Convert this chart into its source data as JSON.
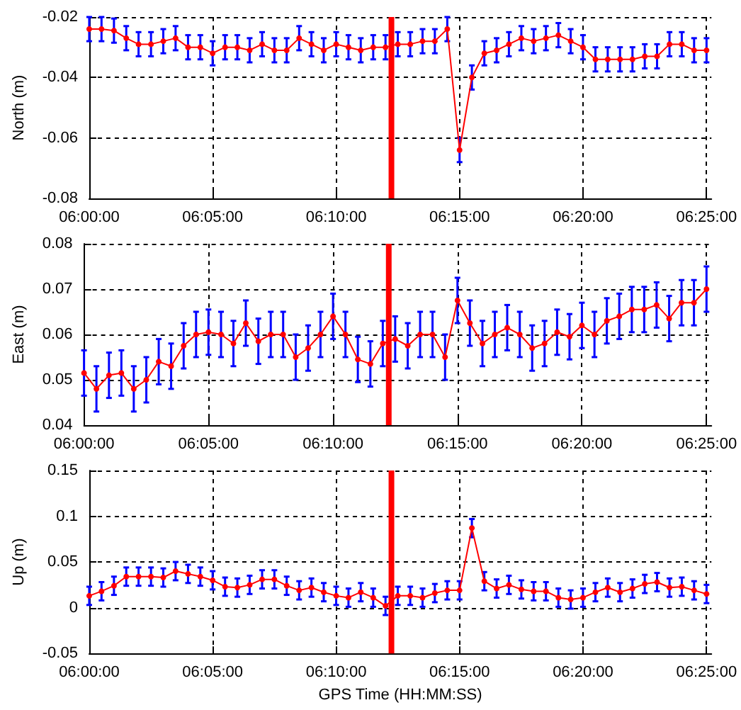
{
  "chart_data": [
    {
      "type": "line",
      "ylabel": "North (m)",
      "marker": "circle",
      "grid": true,
      "xlim": [
        6,
        6.42
      ],
      "ylim": [
        -0.08,
        -0.02
      ],
      "yticks": [
        -0.08,
        -0.06,
        -0.04,
        -0.02
      ],
      "xticks": [
        {
          "value": 6,
          "label": "06:00:00"
        },
        {
          "value": 6.0833,
          "label": "06:05:00"
        },
        {
          "value": 6.1667,
          "label": "06:10:00"
        },
        {
          "value": 6.25,
          "label": "06:15:00"
        },
        {
          "value": 6.3333,
          "label": "06:20:00"
        },
        {
          "value": 6.4167,
          "label": "06:25:00"
        }
      ],
      "ref_lines": [
        {
          "axis": "x",
          "value": 6.204,
          "color": "#ff0000"
        }
      ],
      "x": [
        6,
        6.0083,
        6.0167,
        6.025,
        6.0333,
        6.0417,
        6.05,
        6.0583,
        6.0667,
        6.075,
        6.0833,
        6.0917,
        6.1,
        6.1083,
        6.1167,
        6.125,
        6.1333,
        6.1417,
        6.15,
        6.1583,
        6.1667,
        6.175,
        6.1833,
        6.1917,
        6.2,
        6.2083,
        6.2167,
        6.225,
        6.2333,
        6.2417,
        6.25,
        6.2583,
        6.2667,
        6.275,
        6.2833,
        6.2917,
        6.3,
        6.3083,
        6.3167,
        6.325,
        6.3333,
        6.3417,
        6.35,
        6.3583,
        6.3667,
        6.375,
        6.3833,
        6.3917,
        6.4,
        6.4083,
        6.4167
      ],
      "series": [
        {
          "color": "#ff0000",
          "values": [
            -0.024,
            -0.024,
            -0.0245,
            -0.027,
            -0.029,
            -0.029,
            -0.028,
            -0.027,
            -0.03,
            -0.03,
            -0.032,
            -0.03,
            -0.03,
            -0.031,
            -0.029,
            -0.031,
            -0.031,
            -0.027,
            -0.029,
            -0.031,
            -0.029,
            -0.03,
            -0.031,
            -0.03,
            -0.03,
            -0.029,
            -0.029,
            -0.028,
            -0.028,
            -0.024,
            -0.064,
            -0.04,
            -0.032,
            -0.031,
            -0.029,
            -0.027,
            -0.028,
            -0.027,
            -0.026,
            -0.028,
            -0.03,
            -0.034,
            -0.034,
            -0.034,
            -0.034,
            -0.033,
            -0.033,
            -0.029,
            -0.029,
            -0.031,
            -0.031
          ],
          "errors": [
            0.004,
            0.004,
            0.004,
            0.004,
            0.004,
            0.004,
            0.004,
            0.004,
            0.004,
            0.004,
            0.004,
            0.004,
            0.004,
            0.004,
            0.004,
            0.004,
            0.004,
            0.004,
            0.004,
            0.004,
            0.004,
            0.004,
            0.004,
            0.004,
            0.004,
            0.004,
            0.004,
            0.004,
            0.004,
            0.004,
            0.004,
            0.004,
            0.004,
            0.004,
            0.004,
            0.004,
            0.004,
            0.004,
            0.004,
            0.004,
            0.004,
            0.004,
            0.004,
            0.004,
            0.004,
            0.004,
            0.004,
            0.004,
            0.004,
            0.004,
            0.004
          ]
        }
      ]
    },
    {
      "type": "line",
      "ylabel": "East (m)",
      "marker": "circle",
      "grid": true,
      "xlim": [
        6,
        6.42
      ],
      "ylim": [
        0.04,
        0.08
      ],
      "yticks": [
        0.04,
        0.05,
        0.06,
        0.07,
        0.08
      ],
      "xticks": [
        {
          "value": 6,
          "label": "06:00:00"
        },
        {
          "value": 6.0833,
          "label": "06:05:00"
        },
        {
          "value": 6.1667,
          "label": "06:10:00"
        },
        {
          "value": 6.25,
          "label": "06:15:00"
        },
        {
          "value": 6.3333,
          "label": "06:20:00"
        },
        {
          "value": 6.4167,
          "label": "06:25:00"
        }
      ],
      "ref_lines": [
        {
          "axis": "x",
          "value": 6.204,
          "color": "#ff0000"
        }
      ],
      "x": [
        6,
        6.0083,
        6.0167,
        6.025,
        6.0333,
        6.0417,
        6.05,
        6.0583,
        6.0667,
        6.075,
        6.0833,
        6.0917,
        6.1,
        6.1083,
        6.1167,
        6.125,
        6.1333,
        6.1417,
        6.15,
        6.1583,
        6.1667,
        6.175,
        6.1833,
        6.1917,
        6.2,
        6.2083,
        6.2167,
        6.225,
        6.2333,
        6.2417,
        6.25,
        6.2583,
        6.2667,
        6.275,
        6.2833,
        6.2917,
        6.3,
        6.3083,
        6.3167,
        6.325,
        6.3333,
        6.3417,
        6.35,
        6.3583,
        6.3667,
        6.375,
        6.3833,
        6.3917,
        6.4,
        6.4083,
        6.4167
      ],
      "series": [
        {
          "color": "#ff0000",
          "values": [
            0.0515,
            0.048,
            0.051,
            0.0515,
            0.048,
            0.05,
            0.054,
            0.053,
            0.0575,
            0.06,
            0.0605,
            0.06,
            0.058,
            0.0625,
            0.0585,
            0.06,
            0.06,
            0.055,
            0.057,
            0.06,
            0.064,
            0.06,
            0.0545,
            0.0535,
            0.058,
            0.059,
            0.0575,
            0.06,
            0.06,
            0.055,
            0.0675,
            0.0625,
            0.058,
            0.06,
            0.0615,
            0.06,
            0.057,
            0.058,
            0.0605,
            0.0595,
            0.062,
            0.06,
            0.063,
            0.064,
            0.0655,
            0.0655,
            0.0665,
            0.0635,
            0.067,
            0.067,
            0.07
          ],
          "errors": [
            0.005,
            0.005,
            0.005,
            0.005,
            0.005,
            0.005,
            0.005,
            0.005,
            0.005,
            0.005,
            0.005,
            0.005,
            0.005,
            0.005,
            0.005,
            0.005,
            0.005,
            0.005,
            0.005,
            0.005,
            0.005,
            0.005,
            0.005,
            0.005,
            0.005,
            0.005,
            0.005,
            0.005,
            0.005,
            0.005,
            0.005,
            0.005,
            0.005,
            0.005,
            0.005,
            0.005,
            0.005,
            0.005,
            0.005,
            0.005,
            0.005,
            0.005,
            0.005,
            0.005,
            0.005,
            0.005,
            0.005,
            0.005,
            0.005,
            0.005,
            0.005
          ]
        }
      ]
    },
    {
      "type": "line",
      "ylabel": "Up (m)",
      "xlabel": "GPS Time (HH:MM:SS)",
      "marker": "circle",
      "grid": true,
      "xlim": [
        6,
        6.42
      ],
      "ylim": [
        -0.05,
        0.15
      ],
      "yticks": [
        -0.05,
        0,
        0.05,
        0.1,
        0.15
      ],
      "xticks": [
        {
          "value": 6,
          "label": "06:00:00"
        },
        {
          "value": 6.0833,
          "label": "06:05:00"
        },
        {
          "value": 6.1667,
          "label": "06:10:00"
        },
        {
          "value": 6.25,
          "label": "06:15:00"
        },
        {
          "value": 6.3333,
          "label": "06:20:00"
        },
        {
          "value": 6.4167,
          "label": "06:25:00"
        }
      ],
      "ref_lines": [
        {
          "axis": "x",
          "value": 6.204,
          "color": "#ff0000"
        }
      ],
      "x": [
        6,
        6.0083,
        6.0167,
        6.025,
        6.0333,
        6.0417,
        6.05,
        6.0583,
        6.0667,
        6.075,
        6.0833,
        6.0917,
        6.1,
        6.1083,
        6.1167,
        6.125,
        6.1333,
        6.1417,
        6.15,
        6.1583,
        6.1667,
        6.175,
        6.1833,
        6.1917,
        6.2,
        6.2083,
        6.2167,
        6.225,
        6.2333,
        6.2417,
        6.25,
        6.2583,
        6.2667,
        6.275,
        6.2833,
        6.2917,
        6.3,
        6.3083,
        6.3167,
        6.325,
        6.3333,
        6.3417,
        6.35,
        6.3583,
        6.3667,
        6.375,
        6.3833,
        6.3917,
        6.4,
        6.4083,
        6.4167
      ],
      "series": [
        {
          "color": "#ff0000",
          "values": [
            0.013,
            0.018,
            0.024,
            0.034,
            0.034,
            0.034,
            0.033,
            0.04,
            0.037,
            0.034,
            0.03,
            0.023,
            0.022,
            0.025,
            0.031,
            0.031,
            0.024,
            0.019,
            0.022,
            0.017,
            0.013,
            0.011,
            0.017,
            0.011,
            0.002,
            0.013,
            0.013,
            0.011,
            0.016,
            0.019,
            0.019,
            0.087,
            0.029,
            0.021,
            0.025,
            0.02,
            0.018,
            0.018,
            0.011,
            0.009,
            0.011,
            0.017,
            0.022,
            0.017,
            0.021,
            0.026,
            0.028,
            0.022,
            0.023,
            0.019,
            0.015
          ],
          "errors": [
            0.01,
            0.01,
            0.01,
            0.01,
            0.01,
            0.01,
            0.01,
            0.01,
            0.01,
            0.01,
            0.01,
            0.01,
            0.01,
            0.01,
            0.01,
            0.01,
            0.01,
            0.01,
            0.01,
            0.01,
            0.01,
            0.01,
            0.01,
            0.01,
            0.01,
            0.01,
            0.01,
            0.01,
            0.01,
            0.01,
            0.01,
            0.01,
            0.01,
            0.01,
            0.01,
            0.01,
            0.01,
            0.01,
            0.01,
            0.01,
            0.01,
            0.01,
            0.01,
            0.01,
            0.01,
            0.01,
            0.01,
            0.01,
            0.01,
            0.01,
            0.01
          ]
        }
      ]
    }
  ]
}
